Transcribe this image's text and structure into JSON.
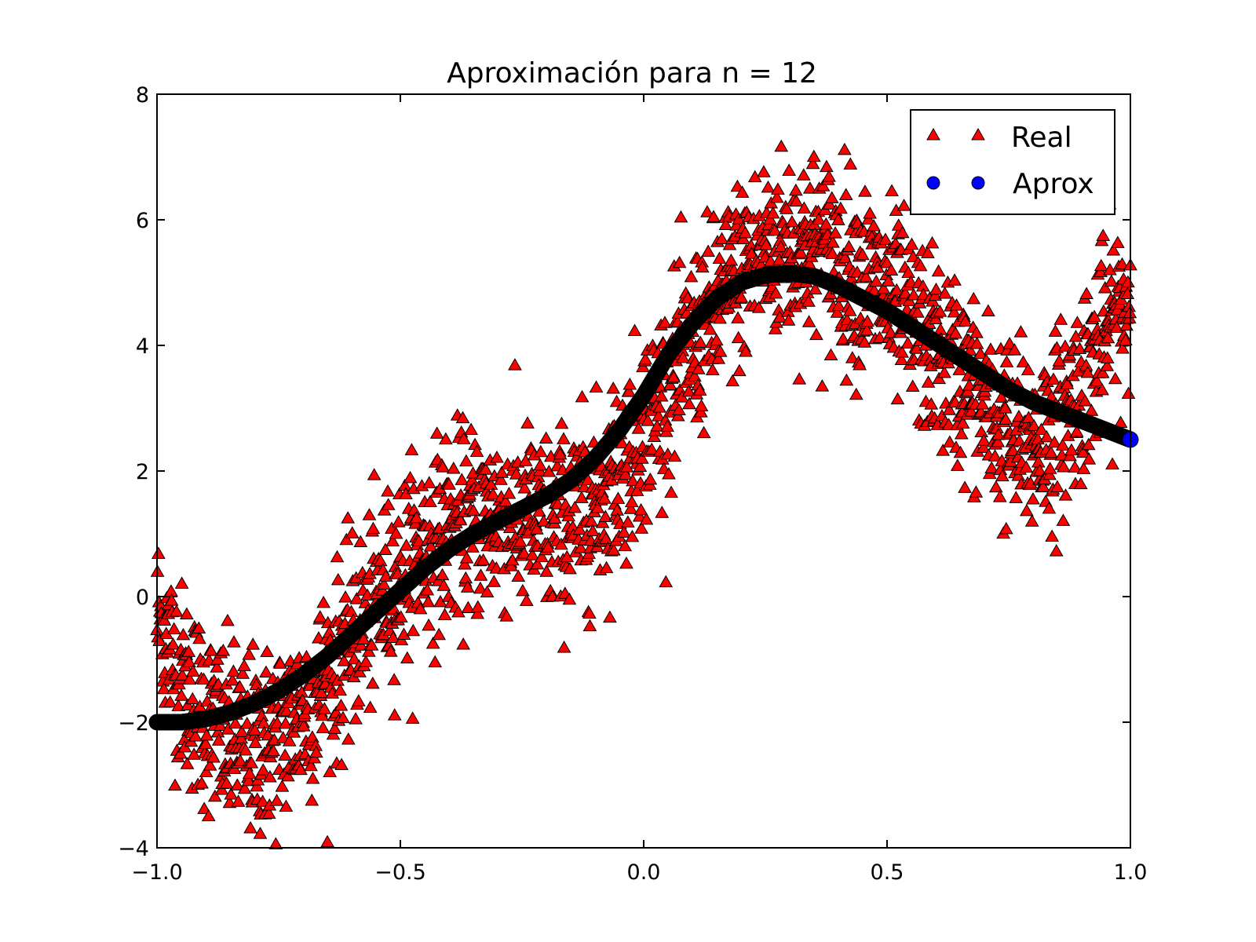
{
  "chart_data": {
    "type": "scatter",
    "title": "Aproximación para n = 12",
    "xlabel": "",
    "ylabel": "",
    "xlim": [
      -1.0,
      1.0
    ],
    "ylim": [
      -4,
      8
    ],
    "xticks": [
      -1.0,
      -0.5,
      0.0,
      0.5,
      1.0
    ],
    "xtick_labels": [
      "−1.0",
      "−0.5",
      "0.0",
      "0.5",
      "1.0"
    ],
    "yticks": [
      -4,
      -2,
      0,
      2,
      4,
      6,
      8
    ],
    "ytick_labels": [
      "−4",
      "−2",
      "0",
      "2",
      "4",
      "6",
      "8"
    ],
    "grid": false,
    "legend": {
      "position": "top-right",
      "entries": [
        {
          "label": "Real",
          "marker": "triangle",
          "color": "#ff0000"
        },
        {
          "label": "Aprox",
          "marker": "circle",
          "color": "#0000ff"
        }
      ]
    },
    "series": [
      {
        "name": "Real",
        "marker": "triangle",
        "color": "#ff0000",
        "edge_color": "#000000",
        "x": [
          -1.0,
          -0.95,
          -0.9,
          -0.85,
          -0.8,
          -0.75,
          -0.7,
          -0.65,
          -0.6,
          -0.55,
          -0.5,
          -0.45,
          -0.4,
          -0.35,
          -0.3,
          -0.25,
          -0.2,
          -0.15,
          -0.1,
          -0.05,
          0.0,
          0.05,
          0.1,
          0.15,
          0.2,
          0.25,
          0.3,
          0.35,
          0.4,
          0.45,
          0.5,
          0.55,
          0.6,
          0.65,
          0.7,
          0.75,
          0.8,
          0.85,
          0.9,
          0.95,
          1.0
        ],
        "y": [
          -0.3,
          -1.3,
          -1.9,
          -2.3,
          -2.4,
          -2.2,
          -1.8,
          -1.3,
          -0.7,
          -0.1,
          0.4,
          0.8,
          1.1,
          1.2,
          1.3,
          1.2,
          1.1,
          1.2,
          1.5,
          2.0,
          2.7,
          3.3,
          4.0,
          4.6,
          5.2,
          5.5,
          5.6,
          5.6,
          5.4,
          5.1,
          4.8,
          4.3,
          3.9,
          3.5,
          3.0,
          2.6,
          2.4,
          2.7,
          3.4,
          4.2,
          4.8
        ],
        "noise": 0.75
      },
      {
        "name": "Aprox",
        "marker": "circle",
        "color": "#000000",
        "x": [
          -1.0,
          -0.95,
          -0.9,
          -0.85,
          -0.8,
          -0.75,
          -0.7,
          -0.65,
          -0.6,
          -0.55,
          -0.5,
          -0.45,
          -0.4,
          -0.35,
          -0.3,
          -0.25,
          -0.2,
          -0.15,
          -0.1,
          -0.05,
          0.0,
          0.05,
          0.1,
          0.15,
          0.2,
          0.25,
          0.3,
          0.35,
          0.4,
          0.45,
          0.5,
          0.55,
          0.6,
          0.65,
          0.7,
          0.75,
          0.8,
          0.85,
          0.9,
          0.95,
          1.0
        ],
        "y": [
          -2.0,
          -2.0,
          -1.95,
          -1.85,
          -1.7,
          -1.5,
          -1.25,
          -0.95,
          -0.6,
          -0.25,
          0.1,
          0.45,
          0.75,
          1.0,
          1.2,
          1.4,
          1.6,
          1.85,
          2.2,
          2.65,
          3.2,
          3.85,
          4.35,
          4.75,
          5.0,
          5.12,
          5.15,
          5.1,
          4.95,
          4.75,
          4.55,
          4.3,
          4.05,
          3.8,
          3.55,
          3.3,
          3.1,
          2.95,
          2.8,
          2.65,
          2.5
        ],
        "last_point_color": "#0000ff"
      }
    ]
  }
}
